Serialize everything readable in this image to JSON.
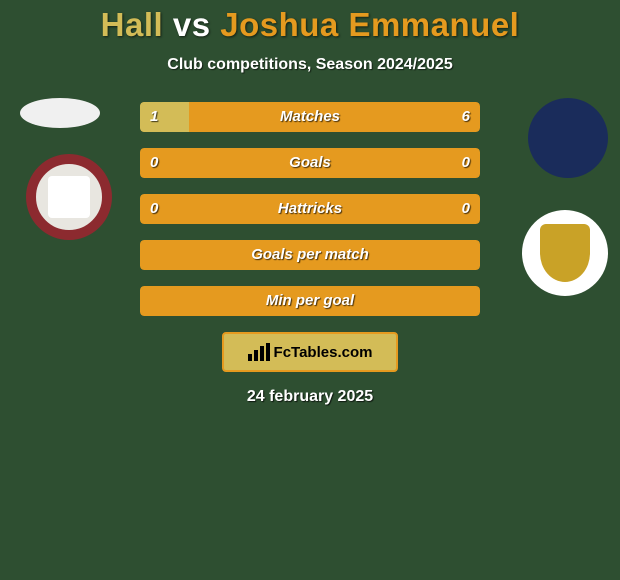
{
  "background_color": "#2e4f31",
  "title": {
    "player1": "Hall",
    "vs": "vs",
    "player2": "Joshua Emmanuel",
    "player1_color": "#d3bc57",
    "player2_color": "#e59a1f",
    "fontsize": 33
  },
  "subtitle": "Club competitions, Season 2024/2025",
  "subtitle_color": "#ffffff",
  "avatars": {
    "left_bg": "#f0f0f0",
    "right_bg": "#1a2c5b"
  },
  "clubs": {
    "left_primary": "#8c2a2f",
    "left_inner": "#e8e6e0",
    "right_bg": "#ffffff",
    "right_shield": "#c9a227"
  },
  "bars": {
    "left_color": "#d3bc57",
    "right_color": "#e59a1f",
    "label_color": "#ffffff",
    "value_color": "#ffffff",
    "height": 30,
    "gap": 16,
    "border_radius": 4,
    "label_fontsize": 15,
    "rows": [
      {
        "label": "Matches",
        "left": "1",
        "right": "6",
        "left_pct": 14.3
      },
      {
        "label": "Goals",
        "left": "0",
        "right": "0",
        "left_pct": 0
      },
      {
        "label": "Hattricks",
        "left": "0",
        "right": "0",
        "left_pct": 0
      },
      {
        "label": "Goals per match",
        "left": "",
        "right": "",
        "left_pct": 0
      },
      {
        "label": "Min per goal",
        "left": "",
        "right": "",
        "left_pct": 0
      }
    ]
  },
  "brand": {
    "text": "FcTables.com",
    "border_color": "#e59a1f",
    "bg_color": "#d3bc57",
    "text_color": "#000000"
  },
  "date": "24 february 2025",
  "date_color": "#ffffff"
}
